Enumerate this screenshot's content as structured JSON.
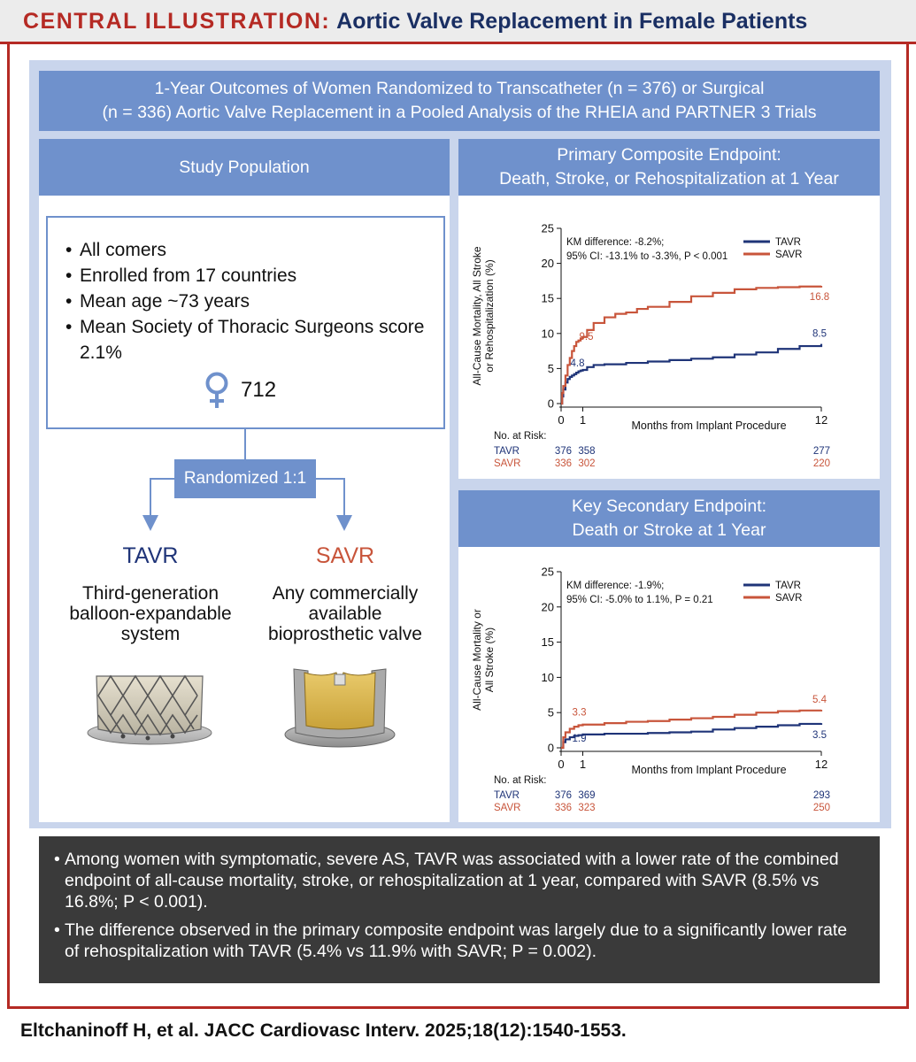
{
  "header": {
    "label": "CENTRAL ILLUSTRATION:",
    "title": "Aortic Valve Replacement in Female Patients"
  },
  "top_banner": {
    "line1": "1-Year Outcomes of Women Randomized to Transcatheter (n = 376) or Surgical",
    "line2": "(n = 336) Aortic Valve Replacement in a Pooled Analysis of the RHEIA and PARTNER 3 Trials"
  },
  "study_population": {
    "title": "Study Population",
    "bullets": [
      "All comers",
      "Enrolled from 17 countries",
      "Mean age ~73 years",
      "Mean Society of Thoracic Surgeons score 2.1%"
    ],
    "female_icon": "female-symbol-icon",
    "count": "712",
    "randomized": "Randomized 1:1",
    "arms": [
      {
        "name": "TAVR",
        "color": "#1f3478",
        "desc_lines": [
          "Third-generation",
          "balloon-expandable",
          "system"
        ],
        "icon": "transcatheter-valve-icon"
      },
      {
        "name": "SAVR",
        "color": "#c8553b",
        "desc_lines": [
          "Any commercially",
          "available",
          "bioprosthetic valve"
        ],
        "icon": "surgical-valve-icon"
      }
    ]
  },
  "colors": {
    "tavr": "#1f3478",
    "savr": "#c8553b",
    "banner_blue": "#6f91cc",
    "panel_bg": "#c9d5ec",
    "accent_red": "#b52a24"
  },
  "chart_data": [
    {
      "type": "line",
      "title_lines": [
        "Primary Composite Endpoint:",
        "Death, Stroke, or Rehospitalization at 1 Year"
      ],
      "ylabel_lines": [
        "All-Cause Mortality, All Stroke",
        "or Rehospitalization (%)"
      ],
      "xlabel": "Months from Implant Procedure",
      "xlim": [
        0,
        12
      ],
      "ylim": [
        0,
        25
      ],
      "xticks": [
        0,
        1,
        12
      ],
      "yticks": [
        0,
        5,
        10,
        15,
        20,
        25
      ],
      "annotation_lines": [
        "KM difference: -8.2%;",
        "95% CI: -13.1% to -3.3%, P < 0.001"
      ],
      "legend_position": "top-right",
      "series": [
        {
          "name": "TAVR",
          "color": "#1f3478",
          "x": [
            0,
            0.05,
            0.1,
            0.2,
            0.3,
            0.4,
            0.5,
            0.6,
            0.7,
            0.8,
            0.9,
            1.0,
            1.2,
            1.5,
            2.0,
            3.0,
            4.0,
            5.0,
            6.0,
            7.0,
            8.0,
            9.0,
            10.0,
            11.0,
            12.0
          ],
          "y": [
            0,
            1.0,
            2.0,
            3.0,
            3.5,
            3.8,
            4.0,
            4.2,
            4.4,
            4.6,
            4.7,
            4.8,
            5.2,
            5.5,
            5.6,
            5.8,
            6.0,
            6.2,
            6.4,
            6.6,
            7.0,
            7.3,
            7.8,
            8.2,
            8.5
          ]
        },
        {
          "name": "SAVR",
          "color": "#c8553b",
          "x": [
            0,
            0.05,
            0.1,
            0.2,
            0.3,
            0.4,
            0.5,
            0.6,
            0.7,
            0.8,
            0.9,
            1.0,
            1.2,
            1.5,
            2.0,
            2.5,
            3.0,
            3.5,
            4.0,
            5.0,
            6.0,
            7.0,
            8.0,
            9.0,
            10.0,
            11.0,
            12.0
          ],
          "y": [
            0,
            1.5,
            2.5,
            4.0,
            5.5,
            6.5,
            7.5,
            8.2,
            8.8,
            9.0,
            9.3,
            9.5,
            10.5,
            11.5,
            12.3,
            12.8,
            13.0,
            13.5,
            13.8,
            14.5,
            15.3,
            15.8,
            16.3,
            16.5,
            16.6,
            16.7,
            16.8
          ]
        }
      ],
      "labels": {
        "tavr_1m": "4.8",
        "savr_1m": "9.5",
        "tavr_12m": "8.5",
        "savr_12m": "16.8"
      },
      "risk_table": {
        "heading": "No. at Risk:",
        "rows": [
          {
            "arm": "TAVR",
            "c0": "376",
            "c1": "358",
            "c12": "277"
          },
          {
            "arm": "SAVR",
            "c0": "336",
            "c1": "302",
            "c12": "220"
          }
        ]
      }
    },
    {
      "type": "line",
      "title_lines": [
        "Key Secondary Endpoint:",
        "Death or Stroke at 1 Year"
      ],
      "ylabel_lines": [
        "All-Cause Mortality or",
        "All Stroke (%)"
      ],
      "xlabel": "Months from Implant Procedure",
      "xlim": [
        0,
        12
      ],
      "ylim": [
        0,
        25
      ],
      "xticks": [
        0,
        1,
        12
      ],
      "yticks": [
        0,
        5,
        10,
        15,
        20,
        25
      ],
      "annotation_lines": [
        "KM difference: -1.9%;",
        "95% CI: -5.0% to 1.1%, P = 0.21"
      ],
      "legend_position": "top-right",
      "series": [
        {
          "name": "TAVR",
          "color": "#1f3478",
          "x": [
            0,
            0.1,
            0.2,
            0.4,
            0.6,
            0.8,
            1.0,
            2.0,
            3.0,
            4.0,
            5.0,
            6.0,
            7.0,
            8.0,
            9.0,
            10.0,
            11.0,
            12.0
          ],
          "y": [
            0,
            0.8,
            1.2,
            1.5,
            1.7,
            1.8,
            1.9,
            2.0,
            2.0,
            2.1,
            2.2,
            2.3,
            2.6,
            2.8,
            3.0,
            3.2,
            3.4,
            3.5
          ]
        },
        {
          "name": "SAVR",
          "color": "#c8553b",
          "x": [
            0,
            0.1,
            0.2,
            0.4,
            0.6,
            0.8,
            1.0,
            2.0,
            3.0,
            4.0,
            5.0,
            6.0,
            7.0,
            8.0,
            9.0,
            10.0,
            11.0,
            12.0
          ],
          "y": [
            0,
            1.5,
            2.2,
            2.7,
            3.0,
            3.2,
            3.3,
            3.5,
            3.7,
            3.8,
            4.0,
            4.2,
            4.4,
            4.7,
            5.0,
            5.2,
            5.3,
            5.4
          ]
        }
      ],
      "labels": {
        "tavr_1m": "1.9",
        "savr_1m": "3.3",
        "tavr_12m": "3.5",
        "savr_12m": "5.4"
      },
      "risk_table": {
        "heading": "No. at Risk:",
        "rows": [
          {
            "arm": "TAVR",
            "c0": "376",
            "c1": "369",
            "c12": "293"
          },
          {
            "arm": "SAVR",
            "c0": "336",
            "c1": "323",
            "c12": "250"
          }
        ]
      }
    }
  ],
  "conclusions": [
    "Among women with symptomatic, severe AS, TAVR was associated with a lower rate of the combined endpoint of all-cause mortality, stroke, or rehospitalization at 1 year, compared with SAVR (8.5% vs 16.8%; P < 0.001).",
    "The difference observed in the primary composite endpoint was largely due to a significantly lower rate of rehospitalization with TAVR (5.4% vs 11.9% with SAVR; P = 0.002)."
  ],
  "citation": "Eltchaninoff H, et al. JACC Cardiovasc Interv. 2025;18(12):1540-1553."
}
